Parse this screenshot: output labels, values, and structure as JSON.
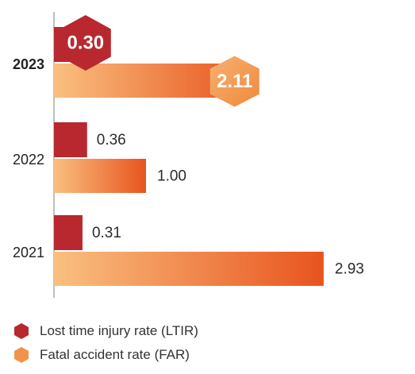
{
  "chart_data": {
    "type": "bar",
    "orientation": "horizontal",
    "categories": [
      "2023",
      "2022",
      "2021"
    ],
    "highlight_category": "2023",
    "series": [
      {
        "name": "Lost time injury rate (LTIR)",
        "values": [
          0.3,
          0.36,
          0.31
        ],
        "labels": [
          "0.30",
          "0.36",
          "0.31"
        ],
        "color": "#b8282e"
      },
      {
        "name": "Fatal accident rate (FAR)",
        "values": [
          2.11,
          1.0,
          2.93
        ],
        "labels": [
          "2.11",
          "1.00",
          "2.93"
        ],
        "color_start": "#f9c080",
        "color_end": "#e8541e"
      }
    ],
    "xlim": [
      0,
      3.0
    ],
    "grid": false,
    "legend_position": "bottom-left"
  },
  "legend": {
    "ltir": {
      "label": "Lost time injury rate (LTIR)",
      "icon": "hexagon-red-icon",
      "color": "#b8282e"
    },
    "far": {
      "label": "Fatal accident rate (FAR)",
      "icon": "hexagon-orange-icon",
      "color": "#f2934a"
    }
  }
}
